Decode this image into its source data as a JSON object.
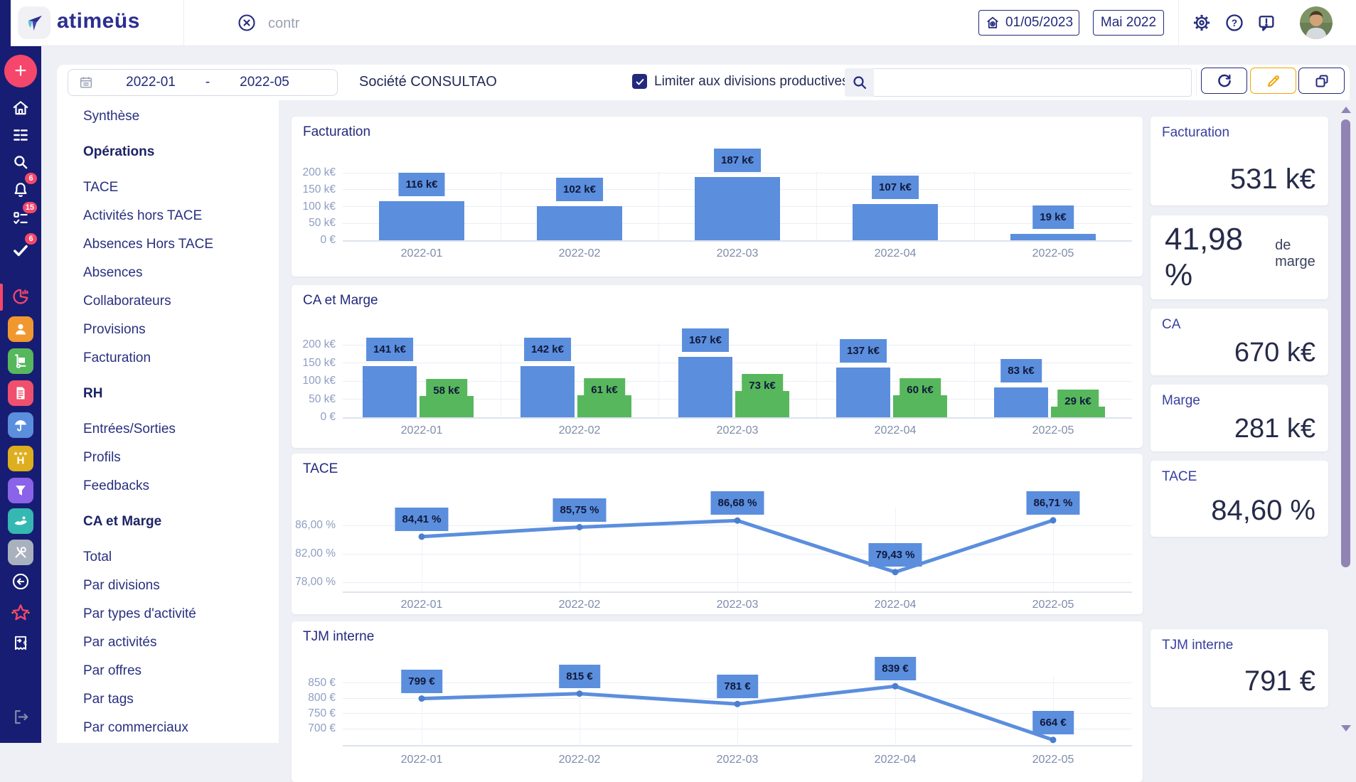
{
  "header": {
    "logo_text": "atimeüs",
    "global_search": {
      "value": "contr"
    },
    "date_button_label": "01/05/2023",
    "month_button_label": "Mai 2022"
  },
  "rail": {
    "add_label": "+",
    "badges": {
      "bell": "6",
      "tasks": "15",
      "check": "6"
    },
    "icons": [
      "add",
      "home",
      "list",
      "search",
      "bell",
      "tasks",
      "check",
      "pie-chart",
      "person",
      "hand-truck",
      "document",
      "umbrella",
      "hotel",
      "funnel",
      "hand",
      "tools",
      "back-circle",
      "star",
      "receipt",
      "logout"
    ]
  },
  "filter_bar": {
    "date_from": "2022-01",
    "date_separator": "-",
    "date_to": "2022-05",
    "company_label": "Société CONSULTAO",
    "productive_checkbox_label": "Limiter aux divisions productives",
    "search_value": ""
  },
  "nav": {
    "items": [
      {
        "label": "Synthèse",
        "bold": false
      },
      {
        "label": "Opérations",
        "bold": true
      },
      {
        "label": "TACE",
        "bold": false
      },
      {
        "label": "Activités hors TACE",
        "bold": false
      },
      {
        "label": "Absences Hors TACE",
        "bold": false
      },
      {
        "label": "Absences",
        "bold": false
      },
      {
        "label": "Collaborateurs",
        "bold": false
      },
      {
        "label": "Provisions",
        "bold": false
      },
      {
        "label": "Facturation",
        "bold": false
      },
      {
        "label": "RH",
        "bold": true
      },
      {
        "label": "Entrées/Sorties",
        "bold": false
      },
      {
        "label": "Profils",
        "bold": false
      },
      {
        "label": "Feedbacks",
        "bold": false
      },
      {
        "label": "CA et Marge",
        "bold": true
      },
      {
        "label": "Total",
        "bold": false
      },
      {
        "label": "Par divisions",
        "bold": false
      },
      {
        "label": "Par types d'activité",
        "bold": false
      },
      {
        "label": "Par activités",
        "bold": false
      },
      {
        "label": "Par offres",
        "bold": false
      },
      {
        "label": "Par tags",
        "bold": false
      },
      {
        "label": "Par commerciaux",
        "bold": false
      }
    ]
  },
  "kpis": [
    {
      "label": "Facturation",
      "value": "531 k€"
    },
    {
      "label": "",
      "value": "41,98 %",
      "suffix": "de marge"
    },
    {
      "label": "CA",
      "value": "670 k€"
    },
    {
      "label": "Marge",
      "value": "281 k€"
    },
    {
      "label": "TACE",
      "value": "84,60 %"
    },
    {
      "label": "TJM interne",
      "value": "791 €"
    }
  ],
  "chart_data": [
    {
      "type": "bar",
      "title": "Facturation",
      "categories": [
        "2022-01",
        "2022-02",
        "2022-03",
        "2022-04",
        "2022-05"
      ],
      "values": [
        116,
        102,
        187,
        107,
        19
      ],
      "value_labels": [
        "116 k€",
        "102 k€",
        "187 k€",
        "107 k€",
        "19 k€"
      ],
      "yticks": [
        {
          "v": 0,
          "label": "0 €"
        },
        {
          "v": 50,
          "label": "50 k€"
        },
        {
          "v": 100,
          "label": "100 k€"
        },
        {
          "v": 150,
          "label": "150 k€"
        },
        {
          "v": 200,
          "label": "200 k€"
        }
      ],
      "ylim": [
        0,
        230
      ],
      "bar_color": "#5b8edd",
      "grid": true,
      "legend": "none"
    },
    {
      "type": "bar",
      "title": "CA et Marge",
      "categories": [
        "2022-01",
        "2022-02",
        "2022-03",
        "2022-04",
        "2022-05"
      ],
      "series": [
        {
          "name": "CA",
          "color": "#5b8edd",
          "values": [
            141,
            142,
            167,
            137,
            83
          ],
          "value_labels": [
            "141 k€",
            "142 k€",
            "167 k€",
            "137 k€",
            "83 k€"
          ]
        },
        {
          "name": "Marge",
          "color": "#57b75c",
          "values": [
            58,
            61,
            73,
            60,
            29
          ],
          "value_labels": [
            "58 k€",
            "61 k€",
            "73 k€",
            "60 k€",
            "29 k€"
          ]
        }
      ],
      "yticks": [
        {
          "v": 0,
          "label": "0 €"
        },
        {
          "v": 50,
          "label": "50 k€"
        },
        {
          "v": 100,
          "label": "100 k€"
        },
        {
          "v": 150,
          "label": "150 k€"
        },
        {
          "v": 200,
          "label": "200 k€"
        }
      ],
      "ylim": [
        0,
        230
      ],
      "grid": true,
      "legend": "none"
    },
    {
      "type": "line",
      "title": "TACE",
      "categories": [
        "2022-01",
        "2022-02",
        "2022-03",
        "2022-04",
        "2022-05"
      ],
      "values": [
        84.41,
        85.75,
        86.68,
        79.43,
        86.71
      ],
      "value_labels": [
        "84,41 %",
        "85,75 %",
        "86,68 %",
        "79,43 %",
        "86,71 %"
      ],
      "yticks": [
        {
          "v": 78,
          "label": "78,00 %"
        },
        {
          "v": 82,
          "label": "82,00 %"
        },
        {
          "v": 86,
          "label": "86,00 %"
        }
      ],
      "ylim": [
        76.6,
        89.6
      ],
      "line_color": "#5b8edd",
      "grid": true,
      "legend": "none"
    },
    {
      "type": "line",
      "title": "TJM interne",
      "categories": [
        "2022-01",
        "2022-02",
        "2022-03",
        "2022-04",
        "2022-05"
      ],
      "values": [
        799,
        815,
        781,
        839,
        664
      ],
      "value_labels": [
        "799 €",
        "815 €",
        "781 €",
        "839 €",
        "664 €"
      ],
      "yticks": [
        {
          "v": 700,
          "label": "700 €"
        },
        {
          "v": 750,
          "label": "750 €"
        },
        {
          "v": 800,
          "label": "800 €"
        },
        {
          "v": 850,
          "label": "850 €"
        }
      ],
      "ylim": [
        645,
        900
      ],
      "line_color": "#5b8edd",
      "grid": true,
      "legend": "none"
    }
  ],
  "colors": {
    "accent_pink": "#f4476b",
    "navy": "#232a7c",
    "bar_blue": "#5b8edd",
    "bar_green": "#57b75c",
    "page_bg": "#eef0f6",
    "scrollbar": "#9184b4",
    "edit_orange": "#f0a500"
  }
}
